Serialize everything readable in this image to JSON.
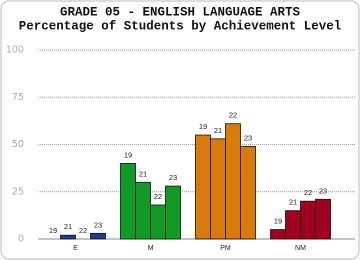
{
  "chart_data": {
    "type": "bar",
    "title": "GRADE 05 - ENGLISH LANGUAGE ARTS",
    "subtitle": "Percentage of Students by Achievement Level",
    "categories": [
      "E",
      "M",
      "PM",
      "NM"
    ],
    "category_colors": [
      "#1c3d8c",
      "#129a26",
      "#d97b08",
      "#a0001e"
    ],
    "series": [
      {
        "name": "19",
        "values": [
          0,
          40,
          55,
          5
        ]
      },
      {
        "name": "21",
        "values": [
          2,
          30,
          53,
          15
        ]
      },
      {
        "name": "22",
        "values": [
          0,
          18,
          61,
          20
        ]
      },
      {
        "name": "23",
        "values": [
          3,
          28,
          49,
          21
        ]
      }
    ],
    "ylim": [
      0,
      100
    ],
    "yticks": [
      0,
      25,
      50,
      75,
      100
    ],
    "grid": true
  }
}
